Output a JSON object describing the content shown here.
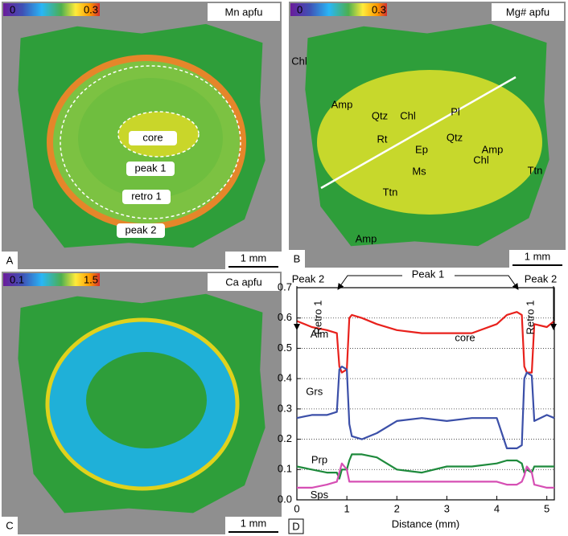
{
  "panels": [
    {
      "label": "A",
      "title": "Mn apfu",
      "colorbar": [
        0,
        0.3
      ],
      "scale": "1 mm",
      "annotations": [
        "core",
        "peak 1",
        "retro 1",
        "peak 2"
      ]
    },
    {
      "label": "B",
      "title": "Mg# apfu",
      "colorbar": [
        0,
        0.3
      ],
      "scale": "1 mm",
      "annotations": [
        "Chl",
        "Amp",
        "Qtz",
        "Chl",
        "Pl",
        "Rt",
        "Ep",
        "Qtz",
        "Amp",
        "Chl",
        "Ms",
        "Ttn",
        "Ttn",
        "Amp"
      ]
    },
    {
      "label": "C",
      "title": "Ca apfu",
      "colorbar": [
        0.1,
        1.5
      ],
      "scale": "1 mm",
      "annotations": []
    }
  ],
  "chart_data": {
    "type": "line",
    "panel_label": "D",
    "x_label": "Distance (mm)",
    "x": [
      0,
      0.3,
      0.6,
      0.8,
      0.85,
      0.9,
      1.0,
      1.05,
      1.1,
      1.3,
      1.6,
      2.0,
      2.5,
      3.0,
      3.5,
      4.0,
      4.2,
      4.4,
      4.5,
      4.55,
      4.6,
      4.7,
      4.75,
      5.0,
      5.15
    ],
    "series": [
      {
        "name": "Alm",
        "color": "#e8211c",
        "values": [
          0.59,
          0.57,
          0.56,
          0.55,
          0.44,
          0.42,
          0.43,
          0.6,
          0.61,
          0.6,
          0.58,
          0.56,
          0.55,
          0.55,
          0.55,
          0.58,
          0.61,
          0.62,
          0.61,
          0.44,
          0.42,
          0.42,
          0.58,
          0.57,
          0.59
        ]
      },
      {
        "name": "Grs",
        "color": "#3b4fa8",
        "values": [
          0.27,
          0.28,
          0.28,
          0.29,
          0.43,
          0.44,
          0.43,
          0.25,
          0.21,
          0.2,
          0.22,
          0.26,
          0.27,
          0.26,
          0.27,
          0.27,
          0.17,
          0.17,
          0.18,
          0.4,
          0.42,
          0.41,
          0.26,
          0.28,
          0.27
        ]
      },
      {
        "name": "Prp",
        "color": "#1e8a3c",
        "values": [
          0.11,
          0.1,
          0.09,
          0.09,
          0.07,
          0.1,
          0.1,
          0.13,
          0.15,
          0.15,
          0.14,
          0.1,
          0.09,
          0.11,
          0.11,
          0.12,
          0.13,
          0.13,
          0.12,
          0.09,
          0.1,
          0.09,
          0.11,
          0.11,
          0.11
        ]
      },
      {
        "name": "Sps",
        "color": "#d64fb4",
        "values": [
          0.04,
          0.04,
          0.05,
          0.06,
          0.09,
          0.12,
          0.1,
          0.06,
          0.06,
          0.06,
          0.06,
          0.06,
          0.06,
          0.06,
          0.06,
          0.06,
          0.05,
          0.05,
          0.06,
          0.08,
          0.11,
          0.09,
          0.05,
          0.04,
          0.04
        ]
      }
    ],
    "annotations": [
      "Peak 2",
      "Retro 1",
      "Peak 1",
      "core",
      "Peak 2",
      "Retro 1"
    ],
    "xlim": [
      0,
      5.15
    ],
    "xticks": [
      0,
      1,
      2,
      3,
      4,
      5
    ],
    "ylim": [
      0,
      0.7
    ],
    "yticks": [
      {
        "value": 0,
        "label": "0.0"
      },
      0.1,
      0.2,
      0.3,
      0.4,
      0.5,
      0.6,
      0.7
    ],
    "grid": true
  }
}
